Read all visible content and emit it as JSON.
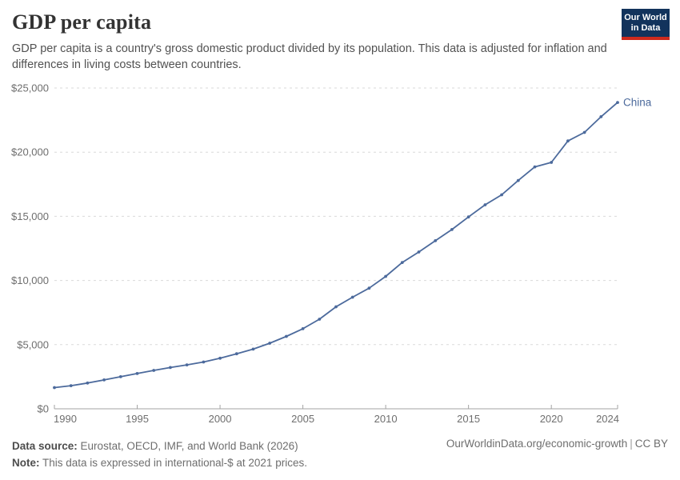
{
  "header": {
    "title": "GDP per capita",
    "subtitle": "GDP per capita is a country's gross domestic product divided by its population. This data is adjusted for inflation and differences in living costs between countries.",
    "logo": {
      "line1": "Our World",
      "line2": "in Data",
      "bg_color": "#12335C",
      "accent_color": "#CE2A1D"
    }
  },
  "chart_data": {
    "type": "line",
    "title": "GDP per capita",
    "xlabel": "",
    "ylabel": "",
    "xlim": [
      1990,
      2024
    ],
    "ylim": [
      0,
      25000
    ],
    "grid": "horizontal-dashed",
    "legend": "end-of-line entity label",
    "x_ticks": [
      1990,
      1995,
      2000,
      2005,
      2010,
      2015,
      2020,
      2024
    ],
    "y_ticks": [
      0,
      5000,
      10000,
      15000,
      20000,
      25000
    ],
    "y_tick_labels": [
      "$0",
      "$5,000",
      "$10,000",
      "$15,000",
      "$20,000",
      "$25,000"
    ],
    "series": [
      {
        "name": "China",
        "color": "#4C6A9C",
        "x": [
          1990,
          1991,
          1992,
          1993,
          1994,
          1995,
          1996,
          1997,
          1998,
          1999,
          2000,
          2001,
          2002,
          2003,
          2004,
          2005,
          2006,
          2007,
          2008,
          2009,
          2010,
          2011,
          2012,
          2013,
          2014,
          2015,
          2016,
          2017,
          2018,
          2019,
          2020,
          2021,
          2022,
          2023,
          2024
        ],
        "values": [
          1650,
          1800,
          2010,
          2250,
          2500,
          2750,
          2990,
          3220,
          3420,
          3650,
          3940,
          4290,
          4650,
          5110,
          5640,
          6240,
          6980,
          7950,
          8700,
          9400,
          10320,
          11400,
          12220,
          13100,
          13970,
          14950,
          15900,
          16680,
          17790,
          18850,
          19200,
          20870,
          21540,
          22760,
          23870
        ]
      }
    ]
  },
  "footer": {
    "source_label": "Data source:",
    "source_value": "Eurostat, OECD, IMF, and World Bank (2026)",
    "note_label": "Note:",
    "note_value": "This data is expressed in international-$ at 2021 prices.",
    "attribution_link": "OurWorldinData.org/economic-growth",
    "attribution_separator": "|",
    "attribution_license": "CC BY"
  },
  "colors": {
    "line": "#4C6A9C",
    "gridline": "#dadada",
    "axis": "#a3a3a3",
    "tick_text": "#6e6e6e"
  }
}
